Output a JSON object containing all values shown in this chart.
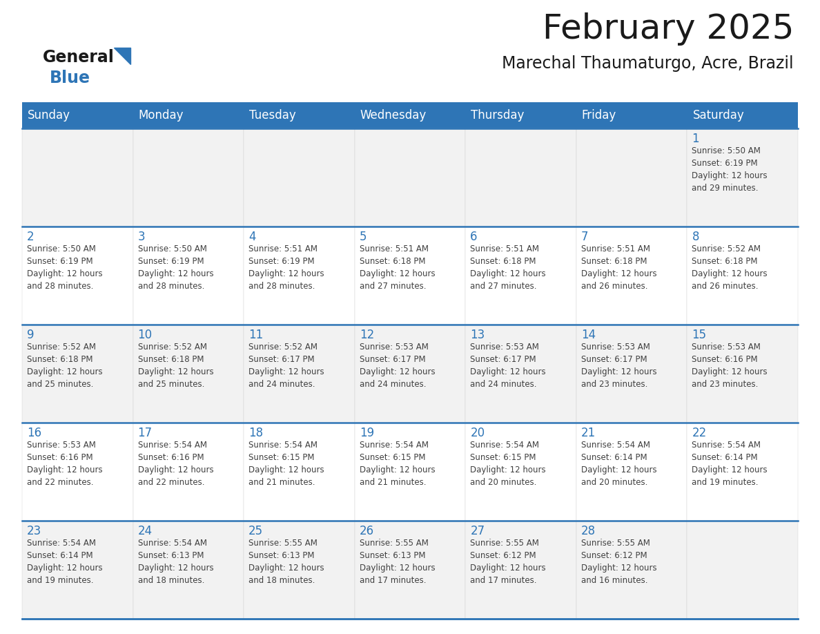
{
  "title": "February 2025",
  "subtitle": "Marechal Thaumaturgo, Acre, Brazil",
  "header_color": "#2e75b6",
  "header_text_color": "#ffffff",
  "day_names": [
    "Sunday",
    "Monday",
    "Tuesday",
    "Wednesday",
    "Thursday",
    "Friday",
    "Saturday"
  ],
  "background_color": "#ffffff",
  "cell_bg_even": "#f2f2f2",
  "cell_bg_odd": "#ffffff",
  "line_color": "#2e75b6",
  "grid_line_color": "#c0c0c0",
  "day_number_color": "#2e75b6",
  "cell_text_color": "#404040",
  "weeks": [
    [
      {
        "day": null,
        "info": null
      },
      {
        "day": null,
        "info": null
      },
      {
        "day": null,
        "info": null
      },
      {
        "day": null,
        "info": null
      },
      {
        "day": null,
        "info": null
      },
      {
        "day": null,
        "info": null
      },
      {
        "day": 1,
        "info": "Sunrise: 5:50 AM\nSunset: 6:19 PM\nDaylight: 12 hours\nand 29 minutes."
      }
    ],
    [
      {
        "day": 2,
        "info": "Sunrise: 5:50 AM\nSunset: 6:19 PM\nDaylight: 12 hours\nand 28 minutes."
      },
      {
        "day": 3,
        "info": "Sunrise: 5:50 AM\nSunset: 6:19 PM\nDaylight: 12 hours\nand 28 minutes."
      },
      {
        "day": 4,
        "info": "Sunrise: 5:51 AM\nSunset: 6:19 PM\nDaylight: 12 hours\nand 28 minutes."
      },
      {
        "day": 5,
        "info": "Sunrise: 5:51 AM\nSunset: 6:18 PM\nDaylight: 12 hours\nand 27 minutes."
      },
      {
        "day": 6,
        "info": "Sunrise: 5:51 AM\nSunset: 6:18 PM\nDaylight: 12 hours\nand 27 minutes."
      },
      {
        "day": 7,
        "info": "Sunrise: 5:51 AM\nSunset: 6:18 PM\nDaylight: 12 hours\nand 26 minutes."
      },
      {
        "day": 8,
        "info": "Sunrise: 5:52 AM\nSunset: 6:18 PM\nDaylight: 12 hours\nand 26 minutes."
      }
    ],
    [
      {
        "day": 9,
        "info": "Sunrise: 5:52 AM\nSunset: 6:18 PM\nDaylight: 12 hours\nand 25 minutes."
      },
      {
        "day": 10,
        "info": "Sunrise: 5:52 AM\nSunset: 6:18 PM\nDaylight: 12 hours\nand 25 minutes."
      },
      {
        "day": 11,
        "info": "Sunrise: 5:52 AM\nSunset: 6:17 PM\nDaylight: 12 hours\nand 24 minutes."
      },
      {
        "day": 12,
        "info": "Sunrise: 5:53 AM\nSunset: 6:17 PM\nDaylight: 12 hours\nand 24 minutes."
      },
      {
        "day": 13,
        "info": "Sunrise: 5:53 AM\nSunset: 6:17 PM\nDaylight: 12 hours\nand 24 minutes."
      },
      {
        "day": 14,
        "info": "Sunrise: 5:53 AM\nSunset: 6:17 PM\nDaylight: 12 hours\nand 23 minutes."
      },
      {
        "day": 15,
        "info": "Sunrise: 5:53 AM\nSunset: 6:16 PM\nDaylight: 12 hours\nand 23 minutes."
      }
    ],
    [
      {
        "day": 16,
        "info": "Sunrise: 5:53 AM\nSunset: 6:16 PM\nDaylight: 12 hours\nand 22 minutes."
      },
      {
        "day": 17,
        "info": "Sunrise: 5:54 AM\nSunset: 6:16 PM\nDaylight: 12 hours\nand 22 minutes."
      },
      {
        "day": 18,
        "info": "Sunrise: 5:54 AM\nSunset: 6:15 PM\nDaylight: 12 hours\nand 21 minutes."
      },
      {
        "day": 19,
        "info": "Sunrise: 5:54 AM\nSunset: 6:15 PM\nDaylight: 12 hours\nand 21 minutes."
      },
      {
        "day": 20,
        "info": "Sunrise: 5:54 AM\nSunset: 6:15 PM\nDaylight: 12 hours\nand 20 minutes."
      },
      {
        "day": 21,
        "info": "Sunrise: 5:54 AM\nSunset: 6:14 PM\nDaylight: 12 hours\nand 20 minutes."
      },
      {
        "day": 22,
        "info": "Sunrise: 5:54 AM\nSunset: 6:14 PM\nDaylight: 12 hours\nand 19 minutes."
      }
    ],
    [
      {
        "day": 23,
        "info": "Sunrise: 5:54 AM\nSunset: 6:14 PM\nDaylight: 12 hours\nand 19 minutes."
      },
      {
        "day": 24,
        "info": "Sunrise: 5:54 AM\nSunset: 6:13 PM\nDaylight: 12 hours\nand 18 minutes."
      },
      {
        "day": 25,
        "info": "Sunrise: 5:55 AM\nSunset: 6:13 PM\nDaylight: 12 hours\nand 18 minutes."
      },
      {
        "day": 26,
        "info": "Sunrise: 5:55 AM\nSunset: 6:13 PM\nDaylight: 12 hours\nand 17 minutes."
      },
      {
        "day": 27,
        "info": "Sunrise: 5:55 AM\nSunset: 6:12 PM\nDaylight: 12 hours\nand 17 minutes."
      },
      {
        "day": 28,
        "info": "Sunrise: 5:55 AM\nSunset: 6:12 PM\nDaylight: 12 hours\nand 16 minutes."
      },
      {
        "day": null,
        "info": null
      }
    ]
  ],
  "logo_general_color": "#1a1a1a",
  "logo_blue_color": "#2e75b6",
  "title_fontsize": 36,
  "subtitle_fontsize": 17,
  "header_fontsize": 12,
  "day_number_fontsize": 12,
  "cell_text_fontsize": 8.5
}
